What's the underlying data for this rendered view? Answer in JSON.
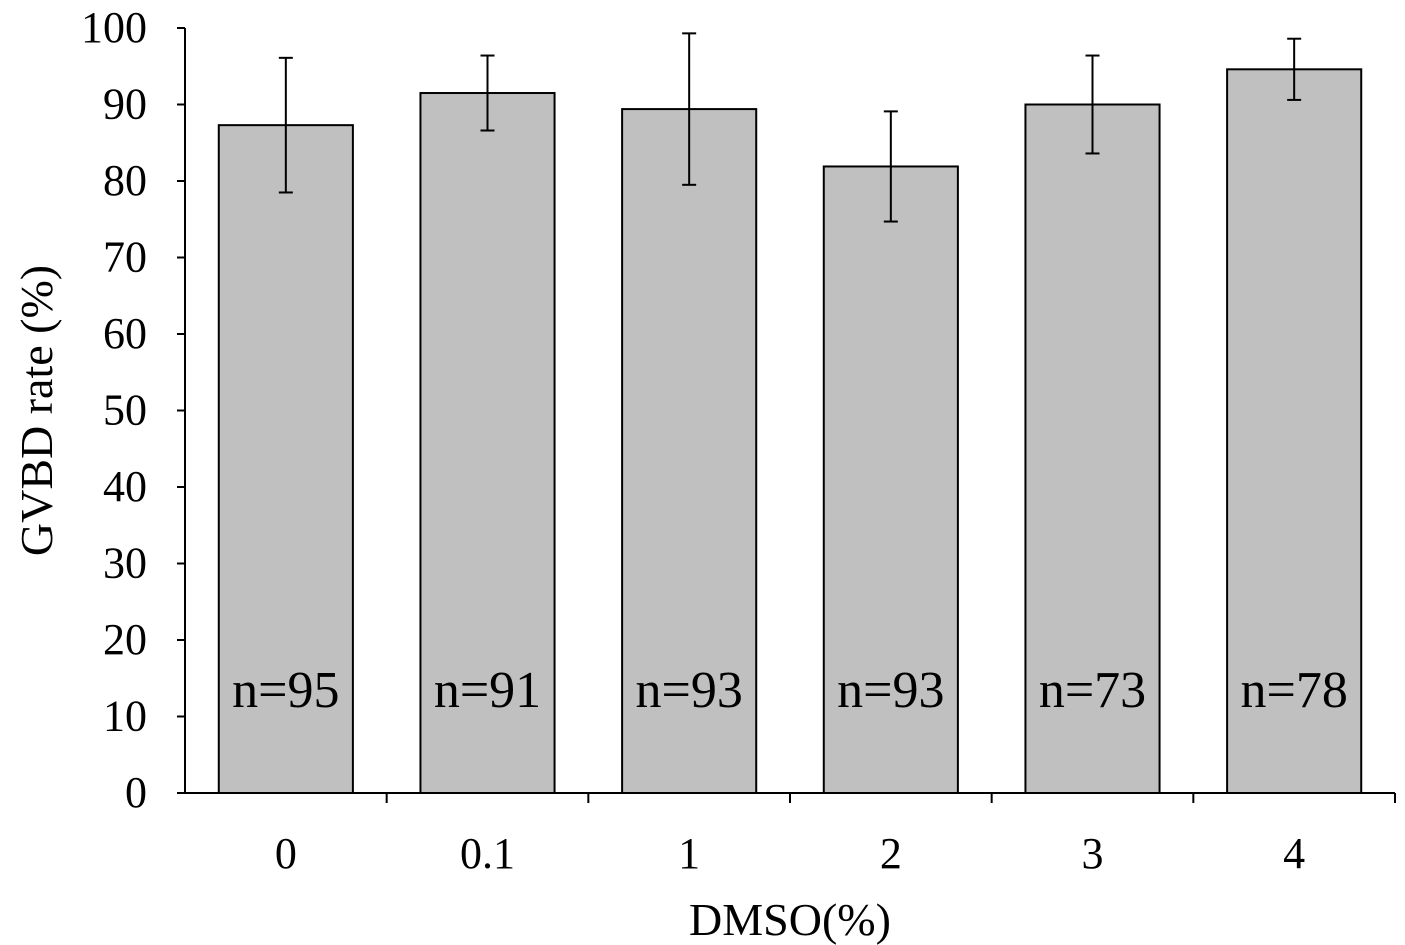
{
  "chart_data": {
    "type": "bar",
    "categories": [
      "0",
      "0.1",
      "1",
      "2",
      "3",
      "4"
    ],
    "values": [
      87.3,
      91.5,
      89.4,
      81.9,
      90.0,
      94.6
    ],
    "error": [
      8.8,
      4.9,
      9.9,
      7.2,
      6.4,
      4.0
    ],
    "bar_labels": [
      "n=95",
      "n=91",
      "n=93",
      "n=93",
      "n=73",
      "n=78"
    ],
    "xlabel": "DMSO(%)",
    "ylabel": "GVBD rate (%)",
    "ylim": [
      0,
      100
    ],
    "yticks": [
      0,
      10,
      20,
      30,
      40,
      50,
      60,
      70,
      80,
      90,
      100
    ],
    "bar_color": "#c0c0c0",
    "edge_color": "#000000",
    "grid": false,
    "legend": "none"
  }
}
